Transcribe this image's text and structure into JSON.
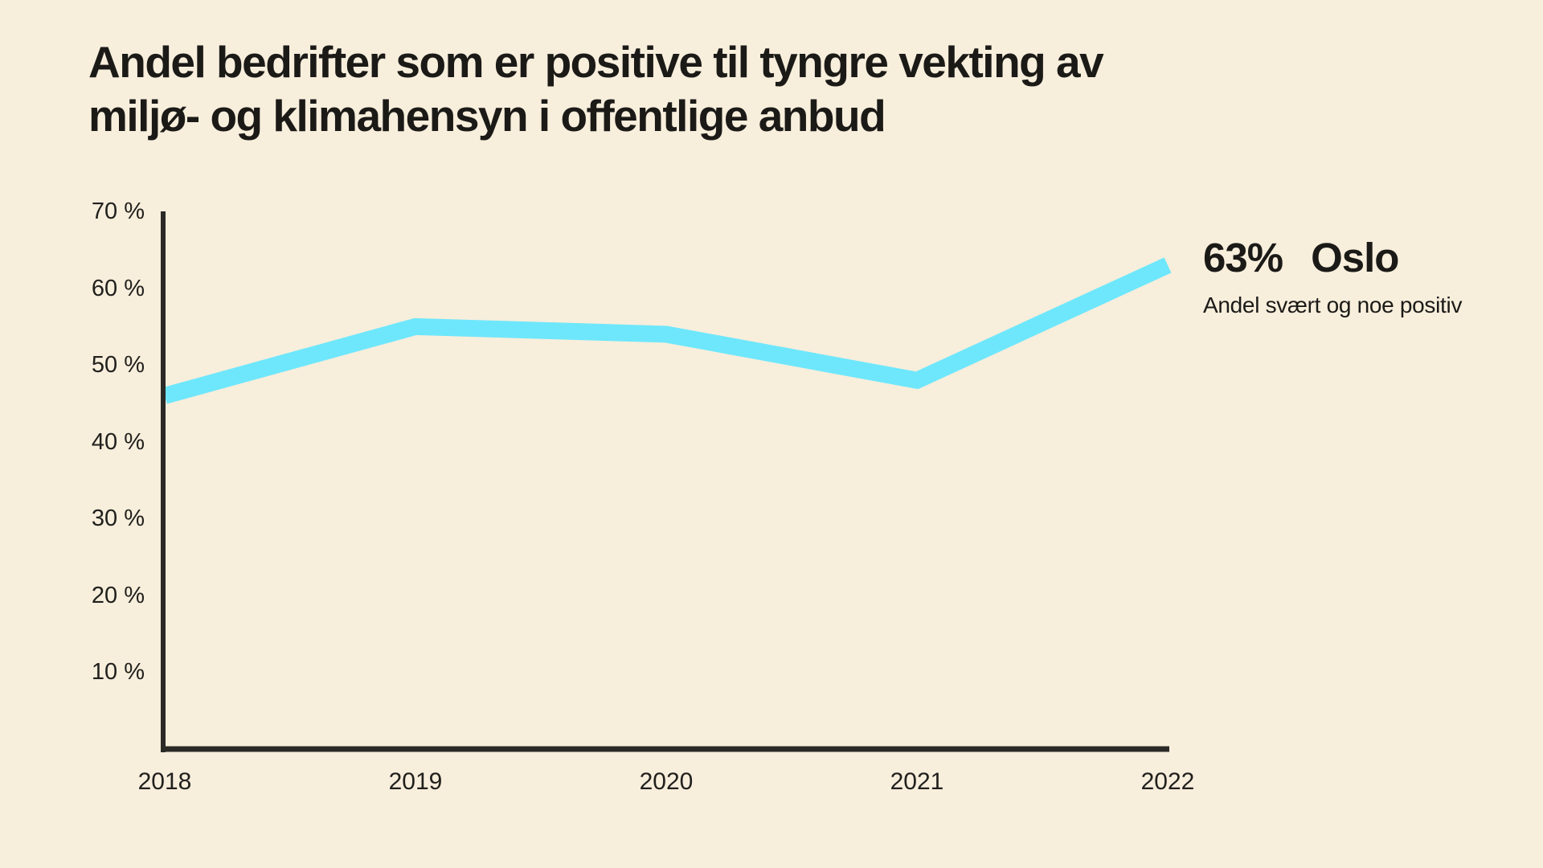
{
  "page": {
    "background": "#F7EEDC",
    "text_color": "#1B1A17"
  },
  "header": {
    "title_lines": [
      "Andel bedrifter som er positive til tyngre vekting av",
      "miljø- og klimahensyn i offentlige anbud"
    ]
  },
  "annotation": {
    "value": "63%",
    "region": "Oslo",
    "subtitle": "Andel svært og noe positiv"
  },
  "chart_data": {
    "type": "line",
    "title": "Andel bedrifter som er positive til tyngre vekting av miljø- og klimahensyn i offentlige anbud",
    "categories": [
      "2018",
      "2019",
      "2020",
      "2021",
      "2022"
    ],
    "series": [
      {
        "name": "Oslo",
        "values": [
          46,
          55,
          54,
          48,
          63
        ],
        "color": "#6EE7FC",
        "end_label": "63%",
        "description": "Andel svært og noe positiv"
      }
    ],
    "xlabel": "",
    "ylabel": "",
    "ylim": [
      0,
      70
    ],
    "y_ticks": [
      {
        "value": 10,
        "label": "10 %"
      },
      {
        "value": 20,
        "label": "20 %"
      },
      {
        "value": 30,
        "label": "30 %"
      },
      {
        "value": 40,
        "label": "40 %"
      },
      {
        "value": 50,
        "label": "50 %"
      },
      {
        "value": 60,
        "label": "60 %"
      },
      {
        "value": 70,
        "label": "70 %"
      }
    ],
    "grid": false,
    "legend_position": "right of line end",
    "axis_color": "#2B2A27",
    "line_width": 21
  }
}
